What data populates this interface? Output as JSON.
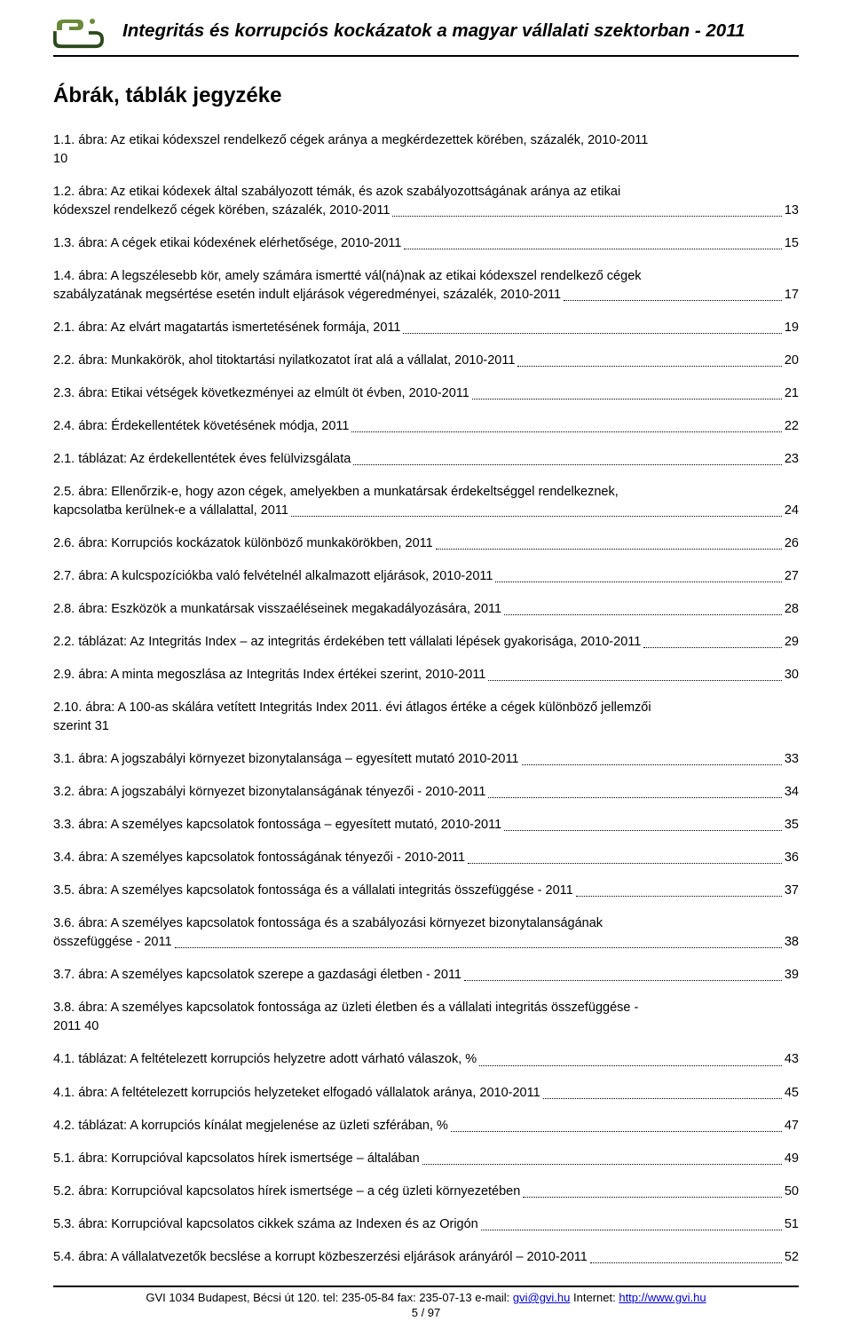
{
  "header": {
    "title": "Integritás és korrupciós kockázatok a magyar vállalati szektorban - 2011",
    "logo_color_top": "#6a8a3a",
    "logo_color_bottom": "#2a4a1a"
  },
  "section_title": "Ábrák, táblák jegyzéke",
  "toc": [
    {
      "type": "multi",
      "line1": "1.1.    ábra: Az etikai kódexszel rendelkező cégek aránya a megkérdezettek körében, százalék, 2010-2011",
      "line2": "10",
      "page": ""
    },
    {
      "type": "multi",
      "line1": "1.2.    ábra: Az etikai kódexek által szabályozott témák, és azok szabályozottságának aránya az etikai",
      "line2": "kódexszel rendelkező cégek körében, százalék, 2010-2011",
      "page": "13"
    },
    {
      "type": "single",
      "text": "1.3.    ábra: A cégek etikai kódexének elérhetősége, 2010-2011",
      "page": "15"
    },
    {
      "type": "multi",
      "line1": "1.4.    ábra: A legszélesebb kör, amely számára ismertté vál(ná)nak az etikai kódexszel rendelkező cégek",
      "line2": "szabályzatának megsértése esetén indult eljárások végeredményei, százalék, 2010-2011",
      "page": "17"
    },
    {
      "type": "single",
      "text": "2.1.    ábra: Az elvárt magatartás ismertetésének formája, 2011",
      "page": "19"
    },
    {
      "type": "single",
      "text": "2.2.    ábra: Munkakörök, ahol titoktartási nyilatkozatot írat alá a vállalat, 2010-2011",
      "page": "20"
    },
    {
      "type": "single",
      "text": "2.3.    ábra: Etikai vétségek következményei az elmúlt öt évben, 2010-2011",
      "page": "21"
    },
    {
      "type": "single",
      "text": "2.4.    ábra: Érdekellentétek követésének módja, 2011",
      "page": "22"
    },
    {
      "type": "single",
      "text": "2.1.    táblázat: Az érdekellentétek éves felülvizsgálata",
      "page": "23"
    },
    {
      "type": "multi",
      "line1": "2.5.    ábra: Ellenőrzik-e, hogy azon cégek, amelyekben a munkatársak érdekeltséggel rendelkeznek,",
      "line2": "kapcsolatba kerülnek-e a vállalattal, 2011",
      "page": "24"
    },
    {
      "type": "single",
      "text": "2.6.    ábra: Korrupciós kockázatok különböző munkakörökben, 2011",
      "page": "26"
    },
    {
      "type": "single",
      "text": "2.7.    ábra: A kulcspozíciókba való felvételnél alkalmazott eljárások, 2010-2011",
      "page": "27"
    },
    {
      "type": "single",
      "text": "2.8.    ábra: Eszközök a munkatársak visszaéléseinek megakadályozására, 2011",
      "page": "28"
    },
    {
      "type": "single",
      "text": "2.2.    táblázat: Az Integritás Index – az integritás érdekében tett vállalati lépések gyakorisága, 2010-2011",
      "page": "29"
    },
    {
      "type": "single",
      "text": "2.9.    ábra: A minta megoszlása az Integritás Index értékei szerint, 2010-2011",
      "page": "30"
    },
    {
      "type": "multi",
      "line1": "2.10.      ábra: A 100-as skálára vetített Integritás Index 2011. évi átlagos értéke a cégek különböző jellemzői",
      "line2": "szerint   31",
      "page": ""
    },
    {
      "type": "single",
      "text": "3.1.    ábra: A jogszabályi környezet bizonytalansága – egyesített mutató 2010-2011",
      "page": "33"
    },
    {
      "type": "single",
      "text": "3.2.    ábra: A jogszabályi környezet bizonytalanságának tényezői - 2010-2011",
      "page": "34"
    },
    {
      "type": "single",
      "text": "3.3.    ábra: A személyes kapcsolatok fontossága – egyesített mutató, 2010-2011",
      "page": "35"
    },
    {
      "type": "single",
      "text": "3.4.    ábra: A személyes kapcsolatok fontosságának tényezői - 2010-2011",
      "page": "36"
    },
    {
      "type": "single",
      "text": "3.5.    ábra: A személyes kapcsolatok fontossága és a vállalati integritás összefüggése - 2011",
      "page": "37"
    },
    {
      "type": "multi",
      "line1": "3.6.    ábra: A személyes kapcsolatok fontossága és a szabályozási környezet bizonytalanságának",
      "line2": "összefüggése - 2011",
      "page": "38"
    },
    {
      "type": "single",
      "text": "3.7.    ábra: A személyes kapcsolatok szerepe a gazdasági életben - 2011",
      "page": "39"
    },
    {
      "type": "multi",
      "line1": "3.8.    ábra: A személyes kapcsolatok fontossága az üzleti életben és a vállalati integritás összefüggése -",
      "line2": "2011   40",
      "page": ""
    },
    {
      "type": "single",
      "text": "4.1.    táblázat: A feltételezett korrupciós helyzetre adott várható válaszok, %",
      "page": "43"
    },
    {
      "type": "single",
      "text": "4.1.    ábra: A feltételezett korrupciós helyzeteket elfogadó vállalatok aránya, 2010-2011",
      "page": "45"
    },
    {
      "type": "single",
      "text": "4.2.    táblázat: A korrupciós kínálat megjelenése az üzleti szférában, %",
      "page": "47"
    },
    {
      "type": "single",
      "text": "5.1.    ábra: Korrupcióval kapcsolatos hírek ismertsége – általában",
      "page": "49"
    },
    {
      "type": "single",
      "text": "5.2.    ábra: Korrupcióval kapcsolatos hírek ismertsége – a cég üzleti környezetében",
      "page": "50"
    },
    {
      "type": "single",
      "text": "5.3.    ábra: Korrupcióval kapcsolatos cikkek száma az Indexen és az Origón",
      "page": "51"
    },
    {
      "type": "single",
      "text": "5.4.    ábra: A vállalatvezetők becslése a korrupt közbeszerzési eljárások arányáról – 2010-2011",
      "page": "52"
    }
  ],
  "footer": {
    "address": "GVI 1034 Budapest, Bécsi út 120.",
    "tel_label": "tel:",
    "tel": "235-05-84",
    "fax_label": "fax:",
    "fax": "235-07-13",
    "email_label": "e-mail:",
    "email": "gvi@gvi.hu",
    "internet_label": "Internet:",
    "internet": "http://www.gvi.hu",
    "page_current": "5",
    "page_total": "97"
  }
}
